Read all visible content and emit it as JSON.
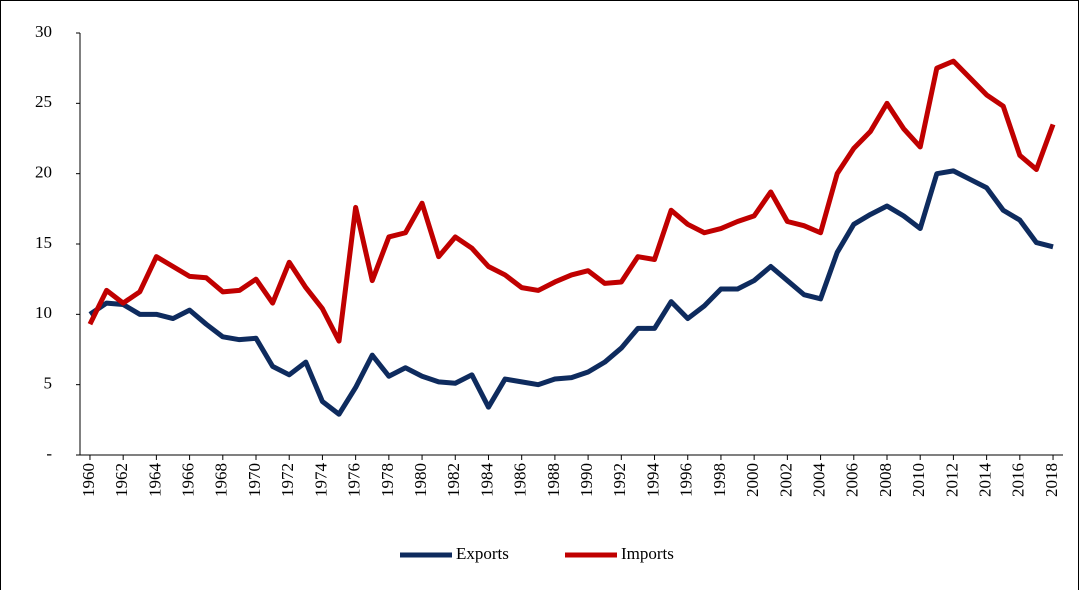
{
  "chart_data": {
    "type": "line",
    "x": [
      1960,
      1961,
      1962,
      1963,
      1964,
      1965,
      1966,
      1967,
      1968,
      1969,
      1970,
      1971,
      1972,
      1973,
      1974,
      1975,
      1976,
      1977,
      1978,
      1979,
      1980,
      1981,
      1982,
      1983,
      1984,
      1985,
      1986,
      1987,
      1988,
      1989,
      1990,
      1991,
      1992,
      1993,
      1994,
      1995,
      1996,
      1997,
      1998,
      1999,
      2000,
      2001,
      2002,
      2003,
      2004,
      2005,
      2006,
      2007,
      2008,
      2009,
      2010,
      2011,
      2012,
      2013,
      2014,
      2015,
      2016,
      2017,
      2018
    ],
    "series": [
      {
        "name": "Exports",
        "color": "#0e2b5e",
        "values": [
          10.0,
          10.8,
          10.7,
          10.0,
          10.0,
          9.7,
          10.3,
          9.3,
          8.4,
          8.2,
          8.3,
          6.3,
          5.7,
          6.6,
          3.8,
          2.9,
          4.8,
          7.1,
          5.6,
          6.2,
          5.6,
          5.2,
          5.1,
          5.7,
          3.4,
          5.4,
          5.2,
          5.0,
          5.4,
          5.5,
          5.9,
          6.6,
          7.6,
          9.0,
          9.0,
          10.9,
          9.7,
          10.6,
          11.8,
          11.8,
          12.4,
          13.4,
          12.4,
          11.4,
          11.1,
          14.4,
          16.4,
          17.1,
          17.7,
          17.0,
          16.1,
          20.0,
          20.2,
          19.6,
          19.0,
          17.4,
          16.7,
          15.1,
          14.8
        ]
      },
      {
        "name": "Imports",
        "color": "#c00000",
        "values": [
          9.3,
          11.7,
          10.8,
          11.6,
          14.1,
          13.4,
          12.7,
          12.6,
          11.6,
          11.7,
          12.5,
          10.8,
          13.7,
          11.9,
          10.4,
          8.1,
          17.6,
          12.4,
          15.5,
          15.8,
          17.9,
          14.1,
          15.5,
          14.7,
          13.4,
          12.8,
          11.9,
          11.7,
          12.3,
          12.8,
          13.1,
          12.2,
          12.3,
          14.1,
          13.9,
          17.4,
          16.4,
          15.8,
          16.1,
          16.6,
          17.0,
          18.7,
          16.6,
          16.3,
          15.8,
          20.0,
          21.8,
          23.0,
          25.0,
          23.2,
          21.9,
          27.5,
          28.0,
          26.8,
          25.6,
          24.8,
          21.3,
          20.3,
          23.5
        ]
      }
    ],
    "xlim": [
      1959.4,
      2018.6
    ],
    "xticks": [
      1960,
      1962,
      1964,
      1966,
      1968,
      1970,
      1972,
      1974,
      1976,
      1978,
      1980,
      1982,
      1984,
      1986,
      1988,
      1990,
      1992,
      1994,
      1996,
      1998,
      2000,
      2002,
      2004,
      2006,
      2008,
      2010,
      2012,
      2014,
      2016,
      2018
    ],
    "ylim": [
      0,
      30
    ],
    "yticks": [
      {
        "value": 0,
        "label": "-"
      },
      5,
      10,
      15,
      20,
      25,
      30
    ],
    "grid": false,
    "legend": "bottom"
  }
}
